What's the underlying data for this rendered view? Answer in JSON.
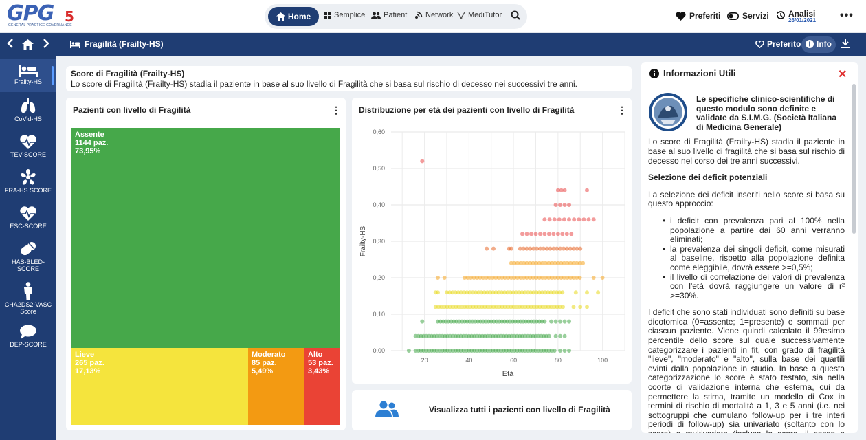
{
  "app": {
    "logo_text": "GPG",
    "logo_suffix": "5",
    "logo_subtitle": "GENERAL PRACTICE GOVERNANCE"
  },
  "nav": {
    "home": "Home",
    "semplice": "Semplice",
    "patient": "Patient",
    "network": "Network",
    "meditutor": "MediTutor"
  },
  "top_right": {
    "preferiti": "Preferiti",
    "servizi": "Servizi",
    "analisi": "Analisi",
    "analisi_date": "26/01/2021"
  },
  "subbar": {
    "title": "Fragilità (Frailty-HS)",
    "preferito": "Preferito",
    "info": "Info"
  },
  "sidebar": {
    "items": [
      {
        "label": "Frailty-HS",
        "icon": "bed-icon"
      },
      {
        "label": "CoVid-HS",
        "icon": "lungs-icon"
      },
      {
        "label": "TEV-SCORE",
        "icon": "heart-pulse-icon"
      },
      {
        "label": "FRA-HS SCORE",
        "icon": "bone-icon"
      },
      {
        "label": "ESC-SCORE",
        "icon": "heart-pulse-icon"
      },
      {
        "label": "HAS-BLED-SCORE",
        "icon": "pills-icon"
      },
      {
        "label": "CHA2DS2-VASC Score",
        "icon": "person-icon"
      },
      {
        "label": "DEP-SCORE",
        "icon": "speech-icon"
      }
    ]
  },
  "description": {
    "title": "Score di Fragilità (Frailty-HS)",
    "text": "Lo score di Fragilità (Frailty-HS) stadia il paziente in base al suo livello di Fragilità che si basa sul rischio di decesso nei successivi tre anni."
  },
  "treemap": {
    "title": "Pazienti con livello di Fragilità",
    "cells": [
      {
        "name": "Assente",
        "count": "1144 paz.",
        "pct": "73,95%",
        "share": 0.7395,
        "color": "#46a84a"
      },
      {
        "name": "Lieve",
        "count": "265 paz.",
        "pct": "17,13%",
        "share": 0.1713,
        "color": "#f5e43d"
      },
      {
        "name": "Moderato",
        "count": "85 paz.",
        "pct": "5,49%",
        "share": 0.0549,
        "color": "#f39a12"
      },
      {
        "name": "Alto",
        "count": "53 paz.",
        "pct": "3,43%",
        "share": 0.0343,
        "color": "#ea4335"
      }
    ]
  },
  "chart_data": {
    "type": "scatter",
    "title": "Distribuzione per età dei pazienti con livello di Fragilità",
    "xlabel": "Età",
    "ylabel": "Frailty-HS",
    "xlim": [
      5,
      110
    ],
    "ylim": [
      0,
      0.6
    ],
    "xticks": [
      "20",
      "40",
      "60",
      "80",
      "100"
    ],
    "yticks": [
      "0,00",
      "0,10",
      "0,20",
      "0,30",
      "0,40",
      "0,50",
      "0,60"
    ],
    "grid": true,
    "series": [
      {
        "color": "#46a84a",
        "points": [
          {
            "y": 0.0,
            "x_from": 16,
            "x_to": 79,
            "step": 1.2
          },
          {
            "y": 0.0,
            "x_from": 13,
            "x_to": 13,
            "step": 1
          },
          {
            "y": 0.0,
            "x_from": 81,
            "x_to": 85,
            "step": 2
          },
          {
            "y": 0.04,
            "x_from": 16,
            "x_to": 77,
            "step": 1.2
          },
          {
            "y": 0.04,
            "x_from": 79,
            "x_to": 83,
            "step": 2
          },
          {
            "y": 0.08,
            "x_from": 26,
            "x_to": 75,
            "step": 1.2
          },
          {
            "y": 0.08,
            "x_from": 19,
            "x_to": 19,
            "step": 1
          },
          {
            "y": 0.08,
            "x_from": 77,
            "x_to": 85,
            "step": 2
          }
        ]
      },
      {
        "color": "#e8d91e",
        "points": [
          {
            "y": 0.12,
            "x_from": 25,
            "x_to": 83,
            "step": 1.3
          },
          {
            "y": 0.12,
            "x_from": 87,
            "x_to": 93,
            "step": 3
          },
          {
            "y": 0.16,
            "x_from": 30,
            "x_to": 82,
            "step": 1.3
          },
          {
            "y": 0.16,
            "x_from": 25,
            "x_to": 26,
            "step": 1
          },
          {
            "y": 0.16,
            "x_from": 88,
            "x_to": 98,
            "step": 5
          }
        ]
      },
      {
        "color": "#f5a623",
        "points": [
          {
            "y": 0.2,
            "x_from": 26,
            "x_to": 29,
            "step": 3
          },
          {
            "y": 0.2,
            "x_from": 38,
            "x_to": 90,
            "step": 1.4
          },
          {
            "y": 0.2,
            "x_from": 96,
            "x_to": 100,
            "step": 4
          },
          {
            "y": 0.24,
            "x_from": 59,
            "x_to": 92,
            "step": 1.4
          }
        ]
      },
      {
        "color": "#e8672a",
        "points": [
          {
            "y": 0.28,
            "x_from": 48,
            "x_to": 51,
            "step": 3
          },
          {
            "y": 0.28,
            "x_from": 58,
            "x_to": 59,
            "step": 1
          },
          {
            "y": 0.28,
            "x_from": 63,
            "x_to": 90,
            "step": 1.5
          }
        ]
      },
      {
        "color": "#e94a4a",
        "points": [
          {
            "y": 0.32,
            "x_from": 64,
            "x_to": 87,
            "step": 2
          },
          {
            "y": 0.36,
            "x_from": 74,
            "x_to": 97,
            "step": 2.2
          },
          {
            "y": 0.4,
            "x_from": 79,
            "x_to": 86,
            "step": 2
          },
          {
            "y": 0.44,
            "x_from": 80,
            "x_to": 83,
            "step": 1.5
          },
          {
            "y": 0.44,
            "x_from": 93,
            "x_to": 93,
            "step": 1
          },
          {
            "y": 0.52,
            "x_from": 19,
            "x_to": 19,
            "step": 1
          }
        ]
      }
    ]
  },
  "link_card": {
    "text": "Visualizza tutti i pazienti con livello di Fragilità"
  },
  "info": {
    "title": "Informazioni Utili",
    "simg": "Le specifiche clinico-scientifiche di questo modulo sono definite e validate da S.I.M.G. (Società Italiana di Medicina Generale)",
    "p1": "Lo score di Fragilità (Frailty-HS) stadia il paziente in base al suo livello di fragilità che si basa sul rischio di decesso nel corso dei tre anni successivi.",
    "section1": "Selezione dei deficit potenziali",
    "p2": "La selezione dei deficit inseriti nello score si basa su questo approccio:",
    "bullets": [
      "i deficit con prevalenza pari al 100% nella popolazione a partire dai 60 anni verranno eliminati;",
      "la prevalenza dei singoli deficit, come misurati al baseline, rispetto alla popolazione definita come eleggibile, dovrà essere >=0,5%;",
      "il livello di correlazione dei valori di prevalenza con l'età dovrà raggiungere un valore di r² >=30%."
    ],
    "p3": "I deficit che sono stati individuati sono definiti su base dicotomica (0=assente; 1=presente) e sommati per ciascun paziente. Viene quindi calcolato il 99esimo percentile dello score sul quale successivamente categorizzare i pazienti in fit, con grado di fragilità \"lieve\", \"moderato\" e \"alto\", sulla base dei quartili evinti dalla popolazione in studio. In base a questa categorizzazione lo score è stato testato, sia nella coorte di validazione interna che esterna, cui da permettere la stima, tramite un modello di Cox in termini di rischio di mortalità a 1, 3 e 5 anni (i.e. nei sottogruppi che cumulano follow-up per i tre interi periodi di follow-up) sia univariato (soltanto con lo score) e multivariato (incluso lo score, il sesso e l'età)."
  }
}
